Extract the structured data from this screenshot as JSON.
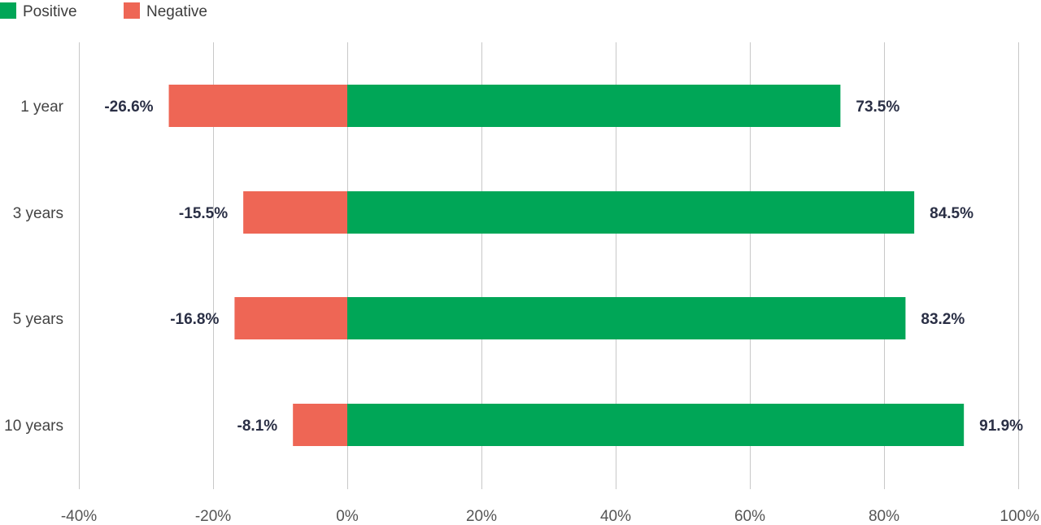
{
  "chart_data": {
    "type": "bar",
    "orientation": "horizontal",
    "stacked": "diverging",
    "categories": [
      "1 year",
      "3 years",
      "5 years",
      "10 years"
    ],
    "series": [
      {
        "name": "Positive",
        "values": [
          73.5,
          84.5,
          83.2,
          91.9
        ],
        "color": "#00a657"
      },
      {
        "name": "Negative",
        "values": [
          -26.6,
          -15.5,
          -16.8,
          -8.1
        ],
        "color": "#ee6655"
      }
    ],
    "data_labels": {
      "Positive": [
        "73.5%",
        "84.5%",
        "83.2%",
        "91.9%"
      ],
      "Negative": [
        "-26.6%",
        "-15.5%",
        "-16.8%",
        "-8.1%"
      ]
    },
    "xlim": [
      -40,
      100
    ],
    "x_ticks": [
      -40,
      -20,
      0,
      20,
      40,
      60,
      80,
      100
    ],
    "x_tick_labels": [
      "-40%",
      "-20%",
      "0%",
      "20%",
      "40%",
      "60%",
      "80%",
      "100%"
    ],
    "grid": "vertical",
    "legend_position": "top-left",
    "title": "",
    "xlabel": "",
    "ylabel": ""
  }
}
